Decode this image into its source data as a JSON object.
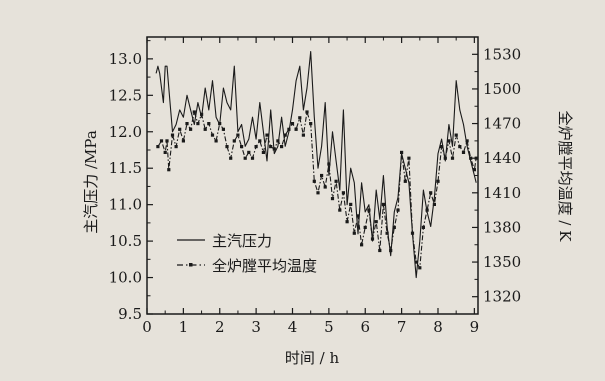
{
  "chart_data": {
    "type": "line",
    "x_axis": {
      "label": "时间 / h",
      "range": [
        0,
        9.1
      ],
      "ticks": [
        0,
        1,
        2,
        3,
        4,
        5,
        6,
        7,
        8,
        9
      ],
      "minor_step": 0.5
    },
    "y_left": {
      "label": "主汽压力 /MPa",
      "range": [
        9.5,
        13.3
      ],
      "ticks": [
        9.5,
        10.0,
        10.5,
        11.0,
        11.5,
        12.0,
        12.5,
        13.0
      ],
      "tick_labels": [
        "9.5",
        "10.0",
        "10.5",
        "11.0",
        "11.5",
        "12.0",
        "12.5",
        "13.0"
      ]
    },
    "y_right": {
      "label": "全炉膛平均温度 / K",
      "range": [
        1305,
        1545
      ],
      "ticks": [
        1320,
        1350,
        1380,
        1410,
        1440,
        1470,
        1500,
        1530
      ]
    },
    "grid": false,
    "legend_position": "lower-left",
    "series": [
      {
        "name": "主汽压力",
        "axis": "left",
        "style": "solid",
        "color": "#1a1a1a",
        "x": [
          0.25,
          0.3,
          0.35,
          0.45,
          0.5,
          0.55,
          0.6,
          0.7,
          0.8,
          0.9,
          1.0,
          1.1,
          1.2,
          1.3,
          1.4,
          1.5,
          1.6,
          1.7,
          1.8,
          1.9,
          2.0,
          2.1,
          2.2,
          2.3,
          2.4,
          2.5,
          2.6,
          2.7,
          2.8,
          2.9,
          3.0,
          3.1,
          3.2,
          3.3,
          3.4,
          3.5,
          3.6,
          3.7,
          3.8,
          3.9,
          4.0,
          4.1,
          4.2,
          4.3,
          4.4,
          4.5,
          4.6,
          4.7,
          4.8,
          4.9,
          5.0,
          5.1,
          5.2,
          5.3,
          5.4,
          5.5,
          5.6,
          5.7,
          5.8,
          5.9,
          6.0,
          6.1,
          6.2,
          6.3,
          6.4,
          6.5,
          6.6,
          6.7,
          6.8,
          6.9,
          7.0,
          7.1,
          7.2,
          7.3,
          7.4,
          7.5,
          7.6,
          7.7,
          7.8,
          7.9,
          8.0,
          8.1,
          8.2,
          8.3,
          8.4,
          8.5,
          8.6,
          8.7,
          8.8,
          8.9,
          9.0,
          9.05
        ],
        "values": [
          12.8,
          12.9,
          12.8,
          12.4,
          12.9,
          12.9,
          12.6,
          12.0,
          12.1,
          12.3,
          12.2,
          12.5,
          12.3,
          12.1,
          12.4,
          12.2,
          12.6,
          12.3,
          12.7,
          12.2,
          12.1,
          12.6,
          12.4,
          12.3,
          12.9,
          12.0,
          12.1,
          11.8,
          11.9,
          12.2,
          11.9,
          12.4,
          12.0,
          11.6,
          12.3,
          11.7,
          11.8,
          12.2,
          11.8,
          12.0,
          12.3,
          12.7,
          12.9,
          12.3,
          12.6,
          13.1,
          12.2,
          11.5,
          11.8,
          12.4,
          11.4,
          12.0,
          11.6,
          11.2,
          12.3,
          11.0,
          11.5,
          11.3,
          10.6,
          11.3,
          10.9,
          11.0,
          10.5,
          11.2,
          10.8,
          11.4,
          10.7,
          10.3,
          10.9,
          11.1,
          11.7,
          11.5,
          11.3,
          10.6,
          10.0,
          10.5,
          11.2,
          10.9,
          10.7,
          11.1,
          11.7,
          11.9,
          11.6,
          12.1,
          11.8,
          12.7,
          12.3,
          12.1,
          11.8,
          11.6,
          11.4,
          11.3
        ]
      },
      {
        "name": "全炉膛平均温度",
        "axis": "right",
        "style": "dash-dot with markers",
        "color": "#1a1a1a",
        "x": [
          0.3,
          0.4,
          0.5,
          0.55,
          0.6,
          0.7,
          0.8,
          0.9,
          1.0,
          1.1,
          1.2,
          1.3,
          1.4,
          1.5,
          1.6,
          1.7,
          1.8,
          1.9,
          2.0,
          2.1,
          2.2,
          2.3,
          2.4,
          2.5,
          2.6,
          2.7,
          2.8,
          2.9,
          3.0,
          3.1,
          3.2,
          3.3,
          3.4,
          3.5,
          3.6,
          3.7,
          3.8,
          3.9,
          4.0,
          4.1,
          4.2,
          4.3,
          4.4,
          4.5,
          4.6,
          4.7,
          4.8,
          4.9,
          5.0,
          5.1,
          5.2,
          5.3,
          5.4,
          5.5,
          5.6,
          5.7,
          5.8,
          5.9,
          6.0,
          6.1,
          6.2,
          6.3,
          6.4,
          6.5,
          6.6,
          6.7,
          6.8,
          6.9,
          7.0,
          7.1,
          7.2,
          7.3,
          7.4,
          7.5,
          7.6,
          7.7,
          7.8,
          7.9,
          8.0,
          8.1,
          8.2,
          8.3,
          8.4,
          8.5,
          8.6,
          8.7,
          8.8,
          8.9,
          9.0,
          9.05
        ],
        "values": [
          1450,
          1455,
          1445,
          1455,
          1430,
          1460,
          1450,
          1465,
          1455,
          1470,
          1465,
          1480,
          1470,
          1478,
          1465,
          1470,
          1460,
          1455,
          1470,
          1465,
          1450,
          1440,
          1455,
          1460,
          1450,
          1440,
          1445,
          1440,
          1450,
          1455,
          1445,
          1460,
          1450,
          1448,
          1455,
          1450,
          1460,
          1465,
          1470,
          1465,
          1475,
          1460,
          1480,
          1470,
          1420,
          1410,
          1425,
          1415,
          1435,
          1405,
          1420,
          1395,
          1410,
          1385,
          1400,
          1375,
          1390,
          1365,
          1380,
          1395,
          1370,
          1385,
          1360,
          1400,
          1375,
          1360,
          1380,
          1395,
          1445,
          1420,
          1440,
          1375,
          1350,
          1345,
          1380,
          1395,
          1410,
          1400,
          1420,
          1450,
          1440,
          1455,
          1440,
          1460,
          1450,
          1445,
          1455,
          1440,
          1430,
          1440
        ]
      }
    ]
  }
}
